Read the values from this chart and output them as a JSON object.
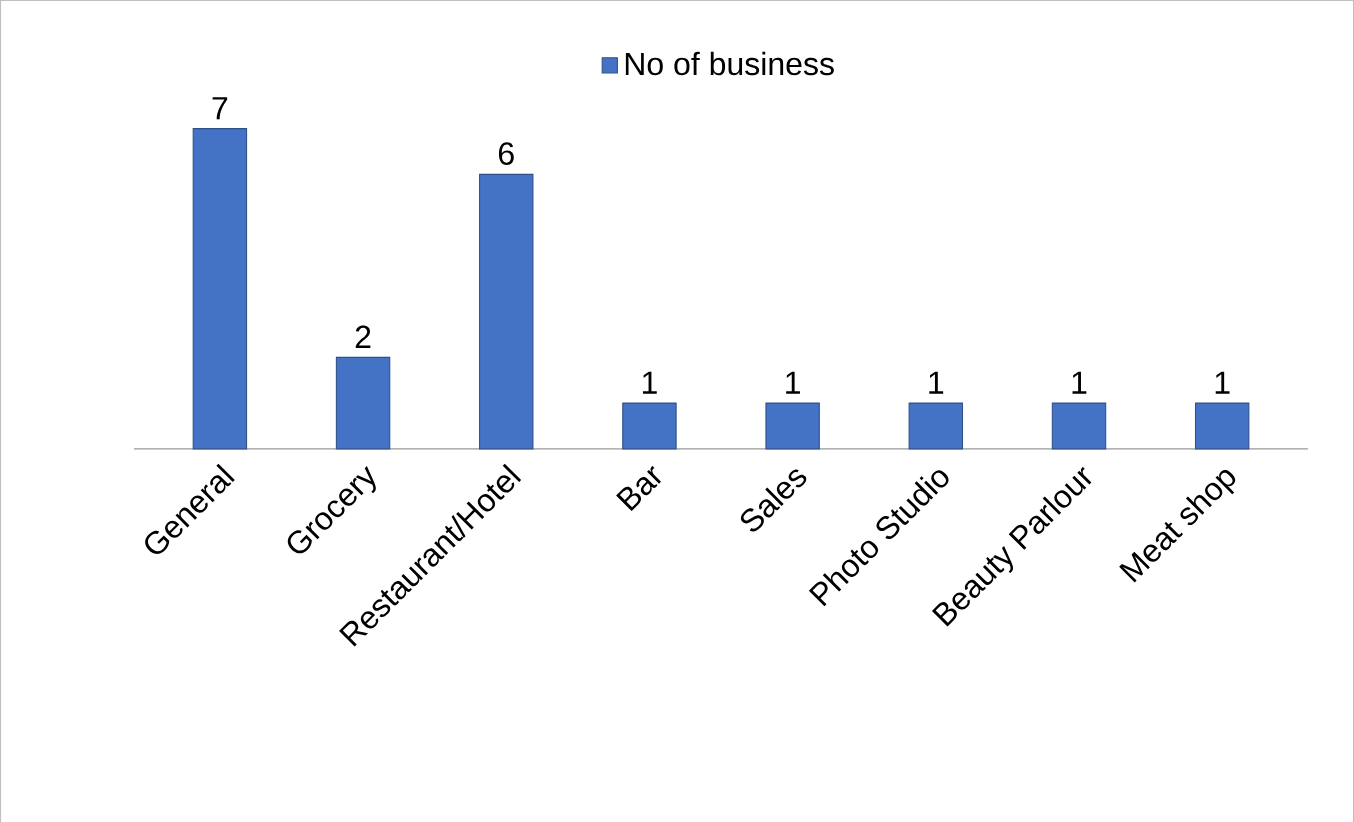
{
  "chart_data": {
    "type": "bar",
    "categories": [
      "General",
      "Grocery",
      "Restaurant/Hotel",
      "Bar",
      "Sales",
      "Photo Studio",
      "Beauty Parlour",
      "Meat shop"
    ],
    "series": [
      {
        "name": "No of business",
        "color": "#4472c4",
        "values": [
          7,
          2,
          6,
          1,
          1,
          1,
          1,
          1
        ]
      }
    ],
    "data_labels": true,
    "legend": "top"
  }
}
